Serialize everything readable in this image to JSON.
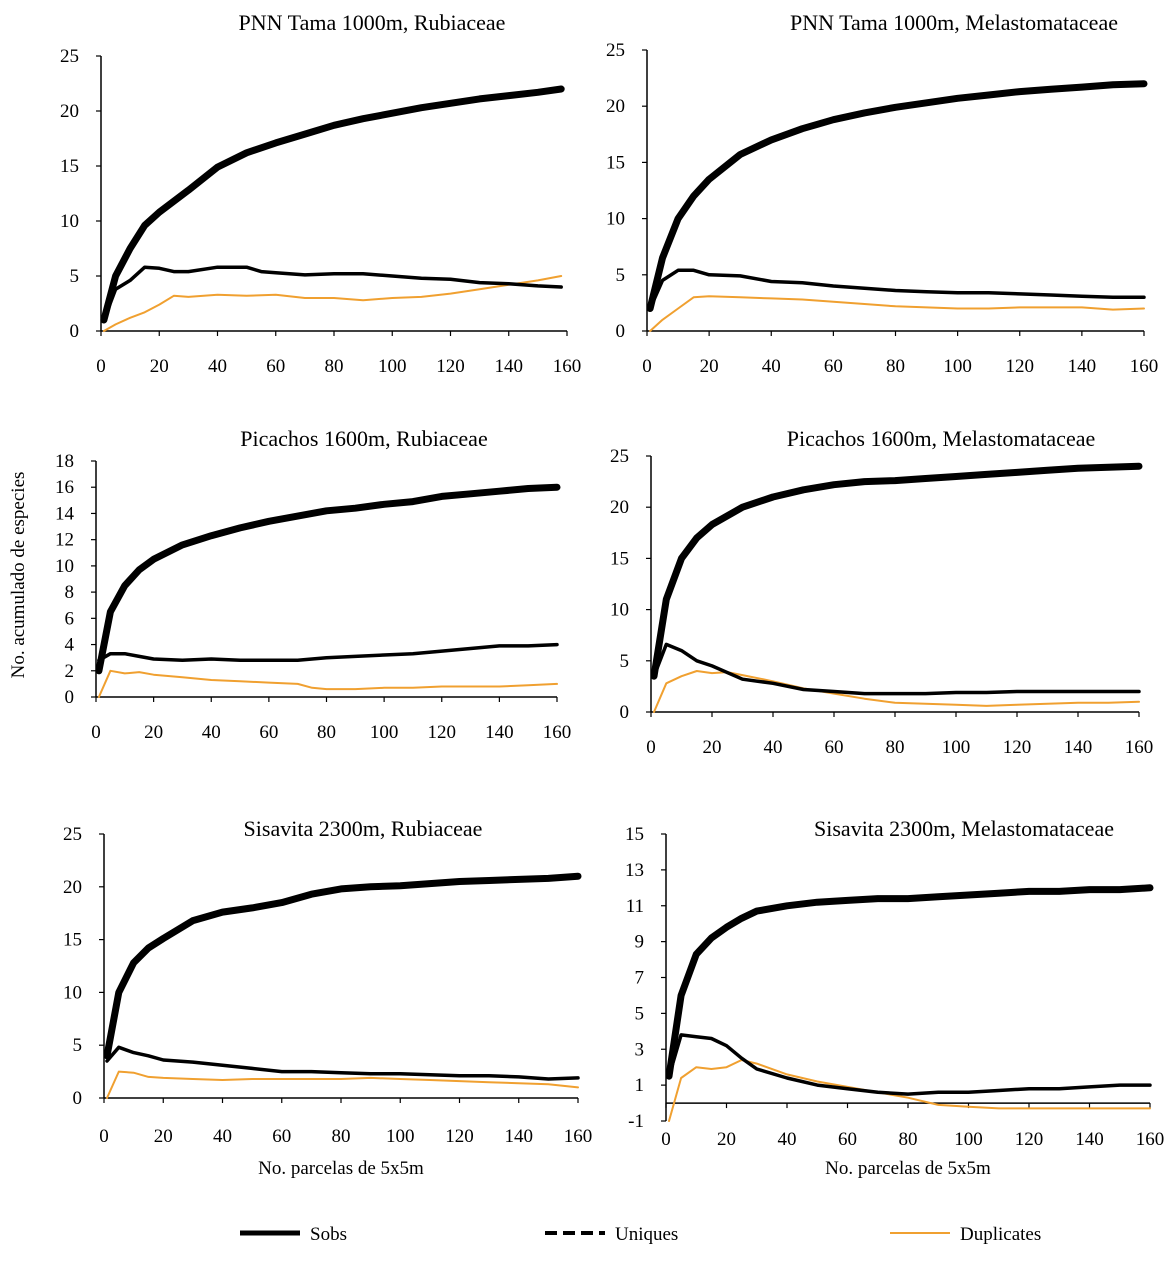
{
  "shared_ylabel": "No. acumulado de  especies",
  "legend": [
    {
      "name": "Sobs",
      "style": "solid",
      "color": "#000000"
    },
    {
      "name": "Uniques",
      "style": "dashed",
      "color": "#000000"
    },
    {
      "name": "Duplicates",
      "style": "solid",
      "color": "#F0A030"
    }
  ],
  "chart_data": [
    {
      "type": "line",
      "title": "PNN Tama 1000m, Rubiaceae",
      "xlabel": "",
      "ylabel": "",
      "xlim": [
        0,
        160
      ],
      "ylim": [
        0,
        25
      ],
      "yticks": [
        0,
        5,
        10,
        15,
        20,
        25
      ],
      "xticks": [
        0,
        20,
        40,
        60,
        80,
        100,
        120,
        140,
        160
      ],
      "grid": false,
      "legend_position": "bottom",
      "series": [
        {
          "name": "Sobs",
          "x": [
            1,
            5,
            10,
            15,
            20,
            30,
            40,
            50,
            60,
            70,
            80,
            90,
            100,
            110,
            120,
            130,
            140,
            150,
            158
          ],
          "y": [
            1,
            5,
            7.5,
            9.6,
            10.8,
            12.8,
            14.9,
            16.2,
            17.1,
            17.9,
            18.7,
            19.3,
            19.8,
            20.3,
            20.7,
            21.1,
            21.4,
            21.7,
            22
          ]
        },
        {
          "name": "Uniques",
          "x": [
            1,
            5,
            10,
            15,
            20,
            25,
            30,
            40,
            50,
            55,
            60,
            70,
            80,
            90,
            100,
            110,
            120,
            130,
            140,
            150,
            158
          ],
          "y": [
            1,
            3.8,
            4.6,
            5.8,
            5.7,
            5.4,
            5.4,
            5.8,
            5.8,
            5.4,
            5.3,
            5.1,
            5.2,
            5.2,
            5.0,
            4.8,
            4.7,
            4.4,
            4.3,
            4.1,
            4.0
          ]
        },
        {
          "name": "Duplicates",
          "x": [
            1,
            5,
            10,
            15,
            20,
            25,
            30,
            40,
            50,
            60,
            70,
            80,
            90,
            100,
            110,
            120,
            130,
            140,
            150,
            158
          ],
          "y": [
            0,
            0.6,
            1.2,
            1.7,
            2.4,
            3.2,
            3.1,
            3.3,
            3.2,
            3.3,
            3.0,
            3.0,
            2.8,
            3.0,
            3.1,
            3.4,
            3.8,
            4.2,
            4.6,
            5.0
          ]
        }
      ]
    },
    {
      "type": "line",
      "title": "PNN Tama 1000m, Melastomataceae",
      "xlabel": "",
      "ylabel": "",
      "xlim": [
        0,
        160
      ],
      "ylim": [
        0,
        25
      ],
      "yticks": [
        0,
        5,
        10,
        15,
        20,
        25
      ],
      "xticks": [
        0,
        20,
        40,
        60,
        80,
        100,
        120,
        140,
        160
      ],
      "grid": false,
      "legend_position": "bottom",
      "series": [
        {
          "name": "Sobs",
          "x": [
            1,
            5,
            10,
            15,
            20,
            30,
            40,
            50,
            60,
            70,
            80,
            90,
            100,
            110,
            120,
            130,
            140,
            150,
            160
          ],
          "y": [
            2,
            6.5,
            10,
            12,
            13.5,
            15.7,
            17,
            18,
            18.8,
            19.4,
            19.9,
            20.3,
            20.7,
            21.0,
            21.3,
            21.5,
            21.7,
            21.9,
            22
          ]
        },
        {
          "name": "Uniques",
          "x": [
            1,
            5,
            10,
            15,
            20,
            30,
            40,
            50,
            60,
            70,
            80,
            90,
            100,
            110,
            120,
            130,
            140,
            150,
            160
          ],
          "y": [
            2,
            4.5,
            5.4,
            5.4,
            5.0,
            4.9,
            4.4,
            4.3,
            4.0,
            3.8,
            3.6,
            3.5,
            3.4,
            3.4,
            3.3,
            3.2,
            3.1,
            3.0,
            3.0
          ]
        },
        {
          "name": "Duplicates",
          "x": [
            1,
            5,
            10,
            15,
            20,
            30,
            40,
            50,
            60,
            70,
            80,
            90,
            100,
            110,
            120,
            130,
            140,
            150,
            160
          ],
          "y": [
            0,
            1,
            2,
            3,
            3.1,
            3.0,
            2.9,
            2.8,
            2.6,
            2.4,
            2.2,
            2.1,
            2.0,
            2.0,
            2.1,
            2.1,
            2.1,
            1.9,
            2.0
          ]
        }
      ]
    },
    {
      "type": "line",
      "title": "Picachos 1600m, Rubiaceae",
      "xlabel": "",
      "ylabel": "",
      "xlim": [
        0,
        160
      ],
      "ylim": [
        0,
        18
      ],
      "yticks": [
        0,
        2,
        4,
        6,
        8,
        10,
        12,
        14,
        16,
        18
      ],
      "xticks": [
        0,
        20,
        40,
        60,
        80,
        100,
        120,
        140,
        160
      ],
      "grid": false,
      "legend_position": "bottom",
      "series": [
        {
          "name": "Sobs",
          "x": [
            1,
            5,
            10,
            15,
            20,
            30,
            40,
            50,
            60,
            70,
            80,
            90,
            100,
            110,
            120,
            130,
            140,
            150,
            160
          ],
          "y": [
            2,
            6.5,
            8.5,
            9.7,
            10.5,
            11.6,
            12.3,
            12.9,
            13.4,
            13.8,
            14.2,
            14.4,
            14.7,
            14.9,
            15.3,
            15.5,
            15.7,
            15.9,
            16
          ]
        },
        {
          "name": "Uniques",
          "x": [
            1,
            5,
            10,
            15,
            20,
            30,
            40,
            50,
            60,
            70,
            80,
            90,
            100,
            110,
            120,
            130,
            140,
            150,
            160
          ],
          "y": [
            2.8,
            3.3,
            3.3,
            3.1,
            2.9,
            2.8,
            2.9,
            2.8,
            2.8,
            2.8,
            3.0,
            3.1,
            3.2,
            3.3,
            3.5,
            3.7,
            3.9,
            3.9,
            4.0
          ]
        },
        {
          "name": "Duplicates",
          "x": [
            1,
            5,
            10,
            15,
            20,
            30,
            40,
            50,
            60,
            70,
            75,
            80,
            90,
            100,
            110,
            120,
            130,
            140,
            150,
            160
          ],
          "y": [
            0,
            2.0,
            1.8,
            1.9,
            1.7,
            1.5,
            1.3,
            1.2,
            1.1,
            1.0,
            0.7,
            0.6,
            0.6,
            0.7,
            0.7,
            0.8,
            0.8,
            0.8,
            0.9,
            1.0
          ]
        }
      ]
    },
    {
      "type": "line",
      "title": "Picachos 1600m, Melastomataceae",
      "xlabel": "",
      "ylabel": "",
      "xlim": [
        0,
        160
      ],
      "ylim": [
        0,
        25
      ],
      "yticks": [
        0,
        5,
        10,
        15,
        20,
        25
      ],
      "xticks": [
        0,
        20,
        40,
        60,
        80,
        100,
        120,
        140,
        160
      ],
      "grid": false,
      "legend_position": "bottom",
      "series": [
        {
          "name": "Sobs",
          "x": [
            1,
            5,
            10,
            15,
            20,
            30,
            40,
            50,
            60,
            70,
            80,
            90,
            100,
            110,
            120,
            130,
            140,
            150,
            160
          ],
          "y": [
            3.5,
            11,
            15,
            17,
            18.3,
            20,
            21,
            21.7,
            22.2,
            22.5,
            22.6,
            22.8,
            23,
            23.2,
            23.4,
            23.6,
            23.8,
            23.9,
            24
          ]
        },
        {
          "name": "Uniques",
          "x": [
            1,
            5,
            10,
            15,
            20,
            30,
            40,
            50,
            60,
            70,
            80,
            90,
            100,
            110,
            120,
            130,
            140,
            150,
            160
          ],
          "y": [
            3.5,
            6.6,
            6.0,
            5.0,
            4.5,
            3.2,
            2.8,
            2.2,
            2.0,
            1.8,
            1.8,
            1.8,
            1.9,
            1.9,
            2.0,
            2.0,
            2.0,
            2.0,
            2.0
          ]
        },
        {
          "name": "Duplicates",
          "x": [
            1,
            5,
            10,
            15,
            20,
            25,
            30,
            40,
            50,
            60,
            70,
            80,
            90,
            100,
            110,
            120,
            130,
            140,
            150,
            160
          ],
          "y": [
            0,
            2.8,
            3.5,
            4.0,
            3.8,
            3.9,
            3.6,
            3.0,
            2.3,
            1.8,
            1.3,
            0.9,
            0.8,
            0.7,
            0.6,
            0.7,
            0.8,
            0.9,
            0.9,
            1.0
          ]
        }
      ]
    },
    {
      "type": "line",
      "title": "Sisavita 2300m, Rubiaceae",
      "xlabel": "No. parcelas de 5x5m",
      "ylabel": "",
      "xlim": [
        0,
        160
      ],
      "ylim": [
        0,
        25
      ],
      "yticks": [
        0,
        5,
        10,
        15,
        20,
        25
      ],
      "xticks": [
        0,
        20,
        40,
        60,
        80,
        100,
        120,
        140,
        160
      ],
      "grid": false,
      "legend_position": "bottom",
      "series": [
        {
          "name": "Sobs",
          "x": [
            1,
            5,
            10,
            15,
            20,
            30,
            40,
            50,
            60,
            70,
            80,
            90,
            100,
            110,
            120,
            130,
            140,
            150,
            160
          ],
          "y": [
            4,
            10,
            12.8,
            14.2,
            15.1,
            16.8,
            17.6,
            18,
            18.5,
            19.3,
            19.8,
            20,
            20.1,
            20.3,
            20.5,
            20.6,
            20.7,
            20.8,
            21
          ]
        },
        {
          "name": "Uniques",
          "x": [
            1,
            5,
            10,
            15,
            20,
            30,
            40,
            50,
            60,
            70,
            80,
            90,
            100,
            110,
            120,
            130,
            140,
            150,
            160
          ],
          "y": [
            3.5,
            4.8,
            4.3,
            4.0,
            3.6,
            3.4,
            3.1,
            2.8,
            2.5,
            2.5,
            2.4,
            2.3,
            2.3,
            2.2,
            2.1,
            2.1,
            2.0,
            1.8,
            1.9
          ]
        },
        {
          "name": "Duplicates",
          "x": [
            1,
            5,
            10,
            15,
            20,
            30,
            40,
            50,
            60,
            70,
            80,
            90,
            100,
            110,
            120,
            130,
            140,
            150,
            160
          ],
          "y": [
            0,
            2.5,
            2.4,
            2.0,
            1.9,
            1.8,
            1.7,
            1.8,
            1.8,
            1.8,
            1.8,
            1.9,
            1.8,
            1.7,
            1.6,
            1.5,
            1.4,
            1.3,
            1.0
          ]
        }
      ]
    },
    {
      "type": "line",
      "title": "Sisavita 2300m, Melastomataceae",
      "xlabel": "No. parcelas de 5x5m",
      "ylabel": "",
      "xlim": [
        0,
        160
      ],
      "ylim": [
        -1,
        15
      ],
      "yticks": [
        -1,
        1,
        3,
        5,
        7,
        9,
        11,
        13,
        15
      ],
      "xticks": [
        0,
        20,
        40,
        60,
        80,
        100,
        120,
        140,
        160
      ],
      "grid": false,
      "legend_position": "bottom",
      "series": [
        {
          "name": "Sobs",
          "x": [
            1,
            5,
            10,
            15,
            20,
            25,
            30,
            40,
            50,
            60,
            70,
            80,
            90,
            100,
            110,
            120,
            130,
            140,
            150,
            160
          ],
          "y": [
            1.5,
            6,
            8.3,
            9.2,
            9.8,
            10.3,
            10.7,
            11.0,
            11.2,
            11.3,
            11.4,
            11.4,
            11.5,
            11.6,
            11.7,
            11.8,
            11.8,
            11.9,
            11.9,
            12
          ]
        },
        {
          "name": "Uniques",
          "x": [
            1,
            5,
            10,
            15,
            20,
            25,
            30,
            40,
            50,
            60,
            70,
            80,
            90,
            100,
            110,
            120,
            130,
            140,
            150,
            160
          ],
          "y": [
            1.5,
            3.8,
            3.7,
            3.6,
            3.2,
            2.5,
            1.9,
            1.4,
            1.0,
            0.8,
            0.6,
            0.5,
            0.6,
            0.6,
            0.7,
            0.8,
            0.8,
            0.9,
            1.0,
            1.0
          ]
        },
        {
          "name": "Duplicates",
          "x": [
            1,
            5,
            10,
            15,
            20,
            25,
            30,
            40,
            50,
            60,
            70,
            80,
            90,
            100,
            110,
            120,
            130,
            140,
            150,
            160
          ],
          "y": [
            -1,
            1.4,
            2.0,
            1.9,
            2.0,
            2.4,
            2.2,
            1.6,
            1.2,
            0.9,
            0.6,
            0.3,
            -0.1,
            -0.2,
            -0.3,
            -0.3,
            -0.3,
            -0.3,
            -0.3,
            -0.3
          ]
        }
      ]
    }
  ]
}
